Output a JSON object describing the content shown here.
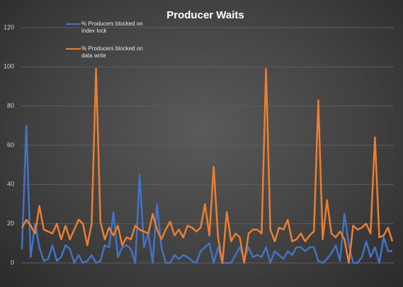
{
  "chart_data": {
    "type": "line",
    "title": "Producer Waits",
    "ylim": [
      0,
      120
    ],
    "yticks": [
      0,
      20,
      40,
      60,
      80,
      100,
      120
    ],
    "grid": true,
    "series": [
      {
        "name": "% Producers blocked on index lock",
        "color": "#4472c4",
        "values": [
          7,
          70,
          3,
          20,
          8,
          1,
          2,
          9,
          1,
          3,
          9,
          7,
          0,
          4,
          0,
          1,
          4,
          0,
          1,
          9,
          8,
          26,
          3,
          8,
          9,
          7,
          0,
          45,
          8,
          15,
          0,
          30,
          8,
          0,
          0,
          4,
          2,
          4,
          3,
          1,
          0,
          6,
          8,
          10,
          0,
          8,
          0,
          0,
          0,
          4,
          8,
          2,
          8,
          3,
          4,
          3,
          8,
          0,
          6,
          4,
          2,
          6,
          4,
          8,
          8,
          6,
          8,
          8,
          1,
          0,
          2,
          5,
          9,
          1,
          25,
          9,
          0,
          0,
          3,
          11,
          3,
          8,
          0,
          13,
          6,
          6
        ]
      },
      {
        "name": "% Producers blocked on data write",
        "color": "#ed7d31",
        "values": [
          18,
          22,
          19,
          15,
          29,
          17,
          16,
          15,
          20,
          12,
          19,
          12,
          17,
          22,
          20,
          9,
          20,
          99,
          21,
          12,
          18,
          14,
          19,
          9,
          13,
          12,
          19,
          17,
          16,
          15,
          25,
          17,
          12,
          17,
          21,
          14,
          17,
          13,
          19,
          18,
          16,
          18,
          30,
          14,
          49,
          13,
          0,
          26,
          11,
          15,
          13,
          0,
          15,
          17,
          17,
          15,
          99,
          17,
          11,
          18,
          17,
          22,
          11,
          12,
          15,
          11,
          14,
          16,
          83,
          12,
          32,
          15,
          13,
          16,
          12,
          0,
          19,
          17,
          18,
          20,
          15,
          64,
          13,
          14,
          18,
          11
        ]
      }
    ]
  }
}
